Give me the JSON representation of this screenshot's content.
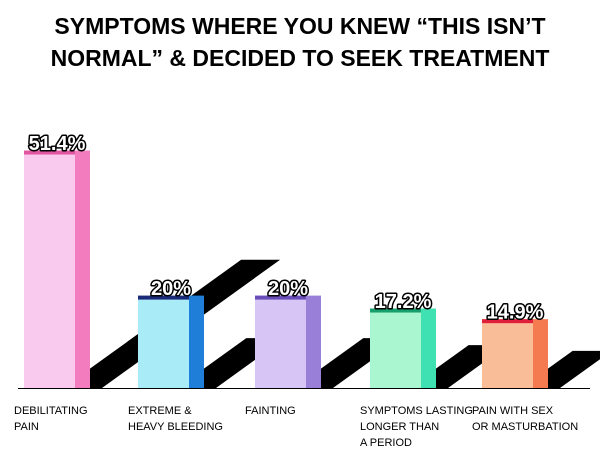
{
  "chart_data": {
    "type": "bar3d",
    "title": [
      "SYMPTOMS WHERE YOU KNEW “THIS ISN’T",
      "NORMAL” & DECIDED TO SEEK TREATMENT"
    ],
    "categories": [
      [
        "DEBILITATING",
        "PAIN"
      ],
      [
        "EXTREME &",
        "HEAVY BLEEDING"
      ],
      [
        "FAINTING"
      ],
      [
        "SYMPTOMS LASTING",
        "LONGER THAN",
        "A PERIOD"
      ],
      [
        "PAIN WITH SEX",
        "OR MASTURBATION"
      ]
    ],
    "values": [
      51.4,
      20,
      20,
      17.2,
      14.9
    ],
    "value_labels": [
      "51.4%",
      "20%",
      "20%",
      "17.2%",
      "14.9%"
    ],
    "colors": [
      {
        "front": "#f9c9ee",
        "side": "#f37cbf",
        "top": "#e2559f"
      },
      {
        "front": "#a9ecf8",
        "side": "#1f7fd8",
        "top": "#1b2a78"
      },
      {
        "front": "#d6c5f5",
        "side": "#9a7fd8",
        "top": "#6b4db8"
      },
      {
        "front": "#aaf6d0",
        "side": "#3fe0b2",
        "top": "#17a06e"
      },
      {
        "front": "#f9bd97",
        "side": "#f47a4f",
        "top": "#e0203a"
      }
    ]
  }
}
